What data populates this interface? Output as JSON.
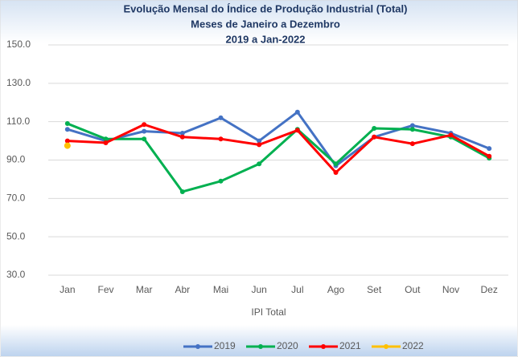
{
  "chart_data": {
    "type": "line",
    "title": "Evolução Mensal do Índice de Produção Industrial (Total)",
    "subtitle": [
      "Meses de Janeiro a Dezembro",
      "2019 a Jan-2022"
    ],
    "x_label": "IPI Total",
    "categories": [
      "Jan",
      "Fev",
      "Mar",
      "Abr",
      "Mai",
      "Jun",
      "Jul",
      "Ago",
      "Set",
      "Out",
      "Nov",
      "Dez"
    ],
    "series": [
      {
        "name": "2019",
        "color": "#4472c4",
        "values": [
          106,
          100,
          105,
          104,
          112,
          100,
          115,
          87,
          102,
          108,
          104,
          96
        ]
      },
      {
        "name": "2020",
        "color": "#00b050",
        "values": [
          109,
          101,
          101,
          73.5,
          79,
          88,
          106,
          88,
          106.5,
          106,
          102,
          91
        ]
      },
      {
        "name": "2021",
        "color": "#ff0000",
        "values": [
          100,
          99,
          108.5,
          102,
          101,
          98,
          105.5,
          83.5,
          102,
          98.5,
          103,
          92
        ]
      },
      {
        "name": "2022",
        "color": "#ffc000",
        "values": [
          97.5,
          null,
          null,
          null,
          null,
          null,
          null,
          null,
          null,
          null,
          null,
          null
        ]
      }
    ],
    "ylim": [
      30,
      150
    ],
    "yticks": [
      {
        "value": 30,
        "label": "30.0"
      },
      {
        "value": 50,
        "label": "50.0"
      },
      {
        "value": 70,
        "label": "70.0"
      },
      {
        "value": 90,
        "label": "90.0"
      },
      {
        "value": 110,
        "label": "110.0"
      },
      {
        "value": 130,
        "label": "130.0"
      },
      {
        "value": 150,
        "label": "150.0"
      }
    ],
    "grid": true,
    "legend": "bottom"
  }
}
